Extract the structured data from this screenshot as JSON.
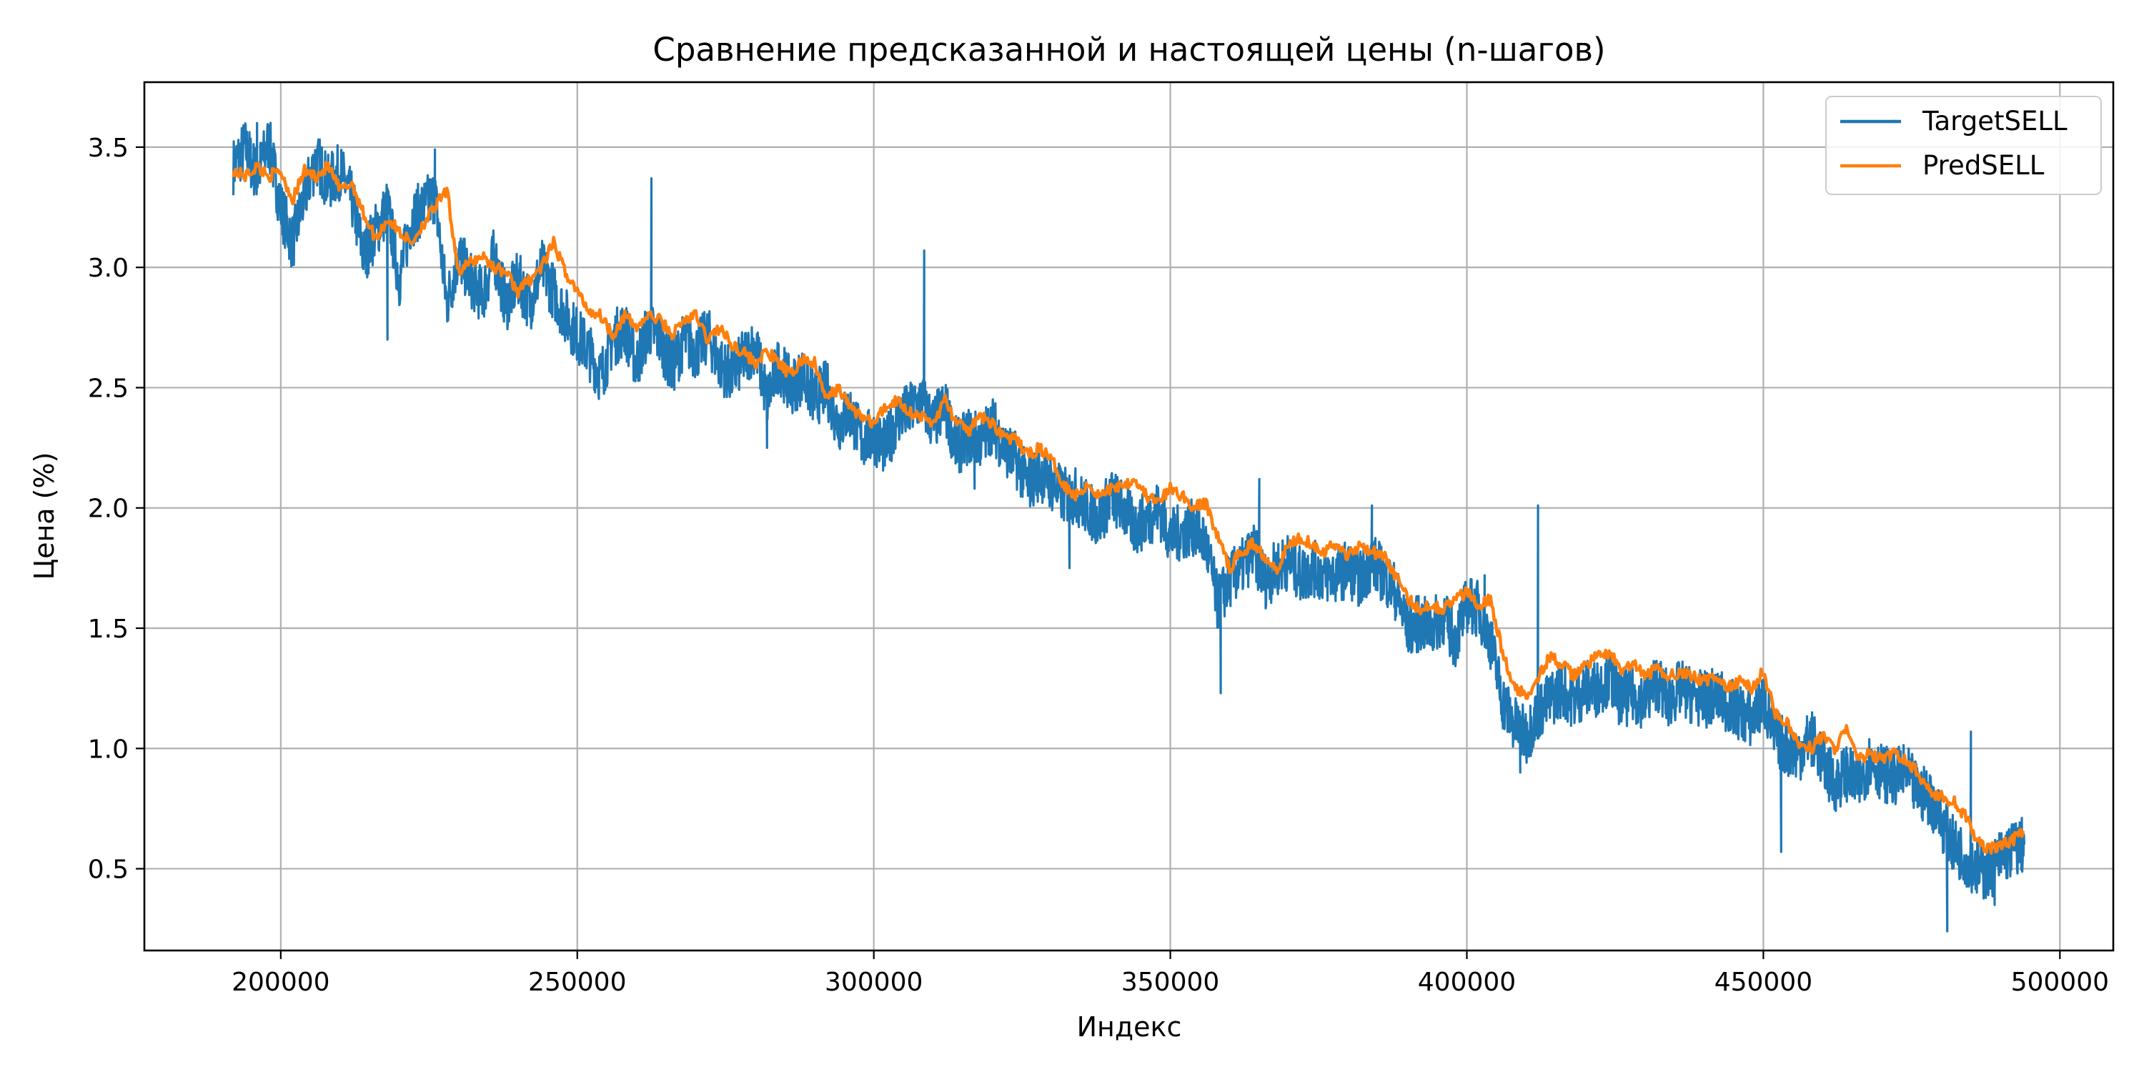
{
  "chart_data": {
    "type": "line",
    "title": "Сравнение предсказанной и настоящей цены (n-шагов)",
    "xlabel": "Индекс",
    "ylabel": "Цена (%)",
    "xlim": [
      177000,
      509000
    ],
    "ylim": [
      0.16,
      3.77
    ],
    "xticks": [
      200000,
      250000,
      300000,
      350000,
      400000,
      450000,
      500000
    ],
    "xtick_labels": [
      "200000",
      "250000",
      "300000",
      "350000",
      "400000",
      "450000",
      "500000"
    ],
    "yticks": [
      0.5,
      1.0,
      1.5,
      2.0,
      2.5,
      3.0,
      3.5
    ],
    "ytick_labels": [
      "0.5",
      "1.0",
      "1.5",
      "2.0",
      "2.5",
      "3.0",
      "3.5"
    ],
    "grid": true,
    "legend_position": "top-right",
    "series": [
      {
        "name": "TargetSELL",
        "color": "#1f77b4",
        "x": [
          192000,
          194000,
          196000,
          198000,
          200000,
          202000,
          204000,
          206000,
          208000,
          210000,
          212000,
          214000,
          216000,
          218000,
          220000,
          222000,
          224000,
          226000,
          228000,
          230000,
          232000,
          234000,
          236000,
          238000,
          240000,
          242000,
          244000,
          246000,
          248000,
          250000,
          252000,
          254000,
          256000,
          258000,
          260000,
          262000,
          264000,
          266000,
          268000,
          270000,
          272000,
          274000,
          276000,
          278000,
          280000,
          282000,
          284000,
          286000,
          288000,
          290000,
          292000,
          294000,
          296000,
          298000,
          300000,
          302000,
          304000,
          306000,
          308000,
          310000,
          312000,
          314000,
          316000,
          318000,
          320000,
          322000,
          324000,
          326000,
          328000,
          330000,
          332000,
          334000,
          336000,
          338000,
          340000,
          342000,
          344000,
          346000,
          348000,
          350000,
          352000,
          354000,
          356000,
          358000,
          360000,
          362000,
          364000,
          366000,
          368000,
          370000,
          372000,
          374000,
          376000,
          378000,
          380000,
          382000,
          384000,
          386000,
          388000,
          390000,
          392000,
          394000,
          396000,
          398000,
          400000,
          402000,
          404000,
          406000,
          408000,
          410000,
          412000,
          414000,
          416000,
          418000,
          420000,
          422000,
          424000,
          426000,
          428000,
          430000,
          432000,
          434000,
          436000,
          438000,
          440000,
          442000,
          444000,
          446000,
          448000,
          450000,
          452000,
          454000,
          456000,
          458000,
          460000,
          462000,
          464000,
          466000,
          468000,
          470000,
          472000,
          474000,
          476000,
          478000,
          480000,
          482000,
          484000,
          486000,
          488000,
          490000,
          492000,
          494000
        ],
        "y": [
          3.42,
          3.5,
          3.38,
          3.52,
          3.25,
          3.1,
          3.3,
          3.45,
          3.35,
          3.4,
          3.28,
          3.05,
          3.15,
          3.25,
          2.95,
          3.2,
          3.25,
          3.3,
          2.85,
          3.05,
          2.95,
          2.88,
          3.05,
          2.85,
          2.95,
          2.85,
          3.0,
          2.9,
          2.8,
          2.72,
          2.65,
          2.55,
          2.7,
          2.75,
          2.6,
          2.75,
          2.7,
          2.58,
          2.7,
          2.65,
          2.72,
          2.6,
          2.55,
          2.62,
          2.68,
          2.45,
          2.6,
          2.5,
          2.55,
          2.45,
          2.5,
          2.35,
          2.4,
          2.28,
          2.3,
          2.25,
          2.38,
          2.4,
          2.45,
          2.35,
          2.42,
          2.25,
          2.3,
          2.28,
          2.35,
          2.25,
          2.2,
          2.1,
          2.15,
          2.1,
          2.05,
          2.05,
          2.0,
          1.95,
          2.05,
          2.0,
          1.92,
          1.95,
          2.0,
          1.88,
          1.9,
          1.92,
          1.85,
          1.6,
          1.7,
          1.75,
          1.82,
          1.7,
          1.75,
          1.78,
          1.72,
          1.75,
          1.72,
          1.72,
          1.75,
          1.7,
          1.78,
          1.72,
          1.65,
          1.5,
          1.52,
          1.5,
          1.55,
          1.45,
          1.6,
          1.58,
          1.45,
          1.2,
          1.1,
          1.05,
          1.15,
          1.2,
          1.25,
          1.2,
          1.25,
          1.25,
          1.3,
          1.2,
          1.22,
          1.2,
          1.28,
          1.2,
          1.25,
          1.22,
          1.2,
          1.22,
          1.18,
          1.15,
          1.12,
          1.2,
          1.05,
          1.0,
          0.98,
          1.05,
          0.95,
          0.85,
          0.9,
          0.85,
          0.95,
          0.9,
          0.88,
          0.9,
          0.82,
          0.8,
          0.7,
          0.6,
          0.55,
          0.5,
          0.48,
          0.55,
          0.58,
          0.6
        ],
        "spikes": [
          [
            196000,
            3.6
          ],
          [
            218000,
            2.7
          ],
          [
            226000,
            3.49
          ],
          [
            262500,
            3.37
          ],
          [
            282000,
            2.25
          ],
          [
            308500,
            3.07
          ],
          [
            317000,
            2.08
          ],
          [
            333000,
            1.75
          ],
          [
            358500,
            1.23
          ],
          [
            365000,
            2.12
          ],
          [
            384000,
            2.01
          ],
          [
            403000,
            1.72
          ],
          [
            412000,
            2.01
          ],
          [
            409000,
            0.9
          ],
          [
            453000,
            0.57
          ],
          [
            481000,
            0.24
          ],
          [
            485000,
            1.07
          ],
          [
            489000,
            0.35
          ]
        ]
      },
      {
        "name": "PredSELL",
        "color": "#ff7f0e",
        "x": [
          192000,
          194000,
          196000,
          198000,
          200000,
          202000,
          204000,
          206000,
          208000,
          210000,
          212000,
          214000,
          216000,
          218000,
          220000,
          222000,
          224000,
          226000,
          228000,
          230000,
          232000,
          234000,
          236000,
          238000,
          240000,
          242000,
          244000,
          246000,
          248000,
          250000,
          252000,
          254000,
          256000,
          258000,
          260000,
          262000,
          264000,
          266000,
          268000,
          270000,
          272000,
          274000,
          276000,
          278000,
          280000,
          282000,
          284000,
          286000,
          288000,
          290000,
          292000,
          294000,
          296000,
          298000,
          300000,
          302000,
          304000,
          306000,
          308000,
          310000,
          312000,
          314000,
          316000,
          318000,
          320000,
          322000,
          324000,
          326000,
          328000,
          330000,
          332000,
          334000,
          336000,
          338000,
          340000,
          342000,
          344000,
          346000,
          348000,
          350000,
          352000,
          354000,
          356000,
          358000,
          360000,
          362000,
          364000,
          366000,
          368000,
          370000,
          372000,
          374000,
          376000,
          378000,
          380000,
          382000,
          384000,
          386000,
          388000,
          390000,
          392000,
          394000,
          396000,
          398000,
          400000,
          402000,
          404000,
          406000,
          408000,
          410000,
          412000,
          414000,
          416000,
          418000,
          420000,
          422000,
          424000,
          426000,
          428000,
          430000,
          432000,
          434000,
          436000,
          438000,
          440000,
          442000,
          444000,
          446000,
          448000,
          450000,
          452000,
          454000,
          456000,
          458000,
          460000,
          462000,
          464000,
          466000,
          468000,
          470000,
          472000,
          474000,
          476000,
          478000,
          480000,
          482000,
          484000,
          486000,
          488000,
          490000,
          492000,
          494000
        ],
        "y": [
          3.4,
          3.38,
          3.42,
          3.38,
          3.4,
          3.28,
          3.4,
          3.38,
          3.42,
          3.32,
          3.35,
          3.22,
          3.12,
          3.2,
          3.15,
          3.1,
          3.18,
          3.25,
          3.32,
          2.98,
          3.02,
          3.05,
          3.0,
          2.98,
          2.9,
          2.95,
          3.0,
          3.1,
          2.98,
          2.9,
          2.82,
          2.8,
          2.72,
          2.8,
          2.75,
          2.8,
          2.78,
          2.72,
          2.78,
          2.8,
          2.7,
          2.75,
          2.68,
          2.65,
          2.6,
          2.65,
          2.6,
          2.55,
          2.62,
          2.6,
          2.45,
          2.5,
          2.42,
          2.38,
          2.35,
          2.42,
          2.45,
          2.4,
          2.38,
          2.35,
          2.45,
          2.35,
          2.32,
          2.38,
          2.35,
          2.3,
          2.28,
          2.22,
          2.25,
          2.2,
          2.1,
          2.05,
          2.1,
          2.05,
          2.08,
          2.1,
          2.12,
          2.05,
          2.02,
          2.08,
          2.05,
          2.0,
          2.02,
          1.88,
          1.75,
          1.82,
          1.85,
          1.8,
          1.75,
          1.85,
          1.88,
          1.85,
          1.82,
          1.85,
          1.8,
          1.85,
          1.82,
          1.8,
          1.72,
          1.62,
          1.58,
          1.6,
          1.58,
          1.62,
          1.65,
          1.6,
          1.62,
          1.4,
          1.25,
          1.22,
          1.3,
          1.38,
          1.35,
          1.3,
          1.35,
          1.38,
          1.4,
          1.32,
          1.35,
          1.3,
          1.33,
          1.3,
          1.32,
          1.3,
          1.28,
          1.3,
          1.25,
          1.28,
          1.25,
          1.32,
          1.15,
          1.1,
          1.02,
          1.0,
          1.05,
          1.0,
          1.08,
          0.95,
          0.98,
          0.95,
          0.98,
          0.95,
          0.9,
          0.82,
          0.8,
          0.78,
          0.72,
          0.62,
          0.58,
          0.6,
          0.62,
          0.65
        ]
      }
    ]
  }
}
